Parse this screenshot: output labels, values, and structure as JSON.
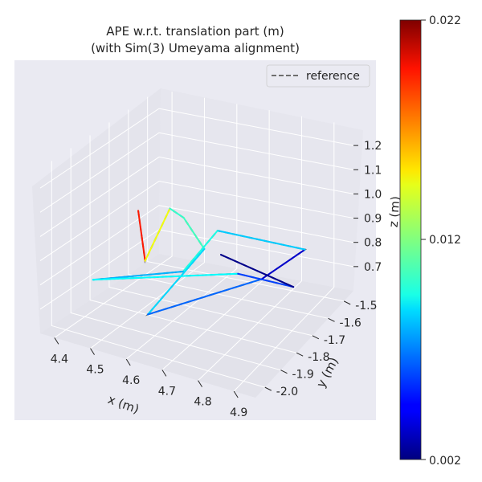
{
  "chart_data": {
    "type": "line",
    "projection": "3d",
    "title_lines": [
      "APE w.r.t. translation part (m)",
      "(with Sim(3) Umeyama alignment)"
    ],
    "xlabel": "x (m)",
    "ylabel": "y (m)",
    "zlabel": "z (m)",
    "x_ticks": [
      "4.4",
      "4.5",
      "4.6",
      "4.7",
      "4.8",
      "4.9"
    ],
    "y_ticks": [
      "-1.5",
      "-1.6",
      "-1.7",
      "-1.8",
      "-1.9",
      "-2.0"
    ],
    "z_ticks": [
      "0.7",
      "0.8",
      "0.9",
      "1.0",
      "1.1",
      "1.2"
    ],
    "x_tick_values": [
      4.4,
      4.5,
      4.6,
      4.7,
      4.8,
      4.9
    ],
    "y_tick_values": [
      -1.5,
      -1.6,
      -1.7,
      -1.8,
      -1.9,
      -2.0
    ],
    "z_tick_values": [
      0.7,
      0.8,
      0.9,
      1.0,
      1.1,
      1.2
    ],
    "xlim": [
      4.36,
      4.96
    ],
    "ylim": [
      -2.06,
      -1.44
    ],
    "zlim": [
      0.6,
      1.28
    ],
    "grid": true,
    "legend": {
      "placement": "top-right",
      "entries": [
        "reference"
      ],
      "style": "dashed",
      "color": "#6e6e6e"
    },
    "colorbar": {
      "ticks": [
        "0.022",
        "0.012",
        "0.002"
      ],
      "min": 0.002,
      "max": 0.022,
      "colormap": "jet"
    },
    "reference_path": [
      [
        4.5,
        -1.8,
        1.02
      ],
      [
        4.52,
        -1.8,
        0.82
      ],
      [
        4.55,
        -1.72,
        1.0
      ],
      [
        4.58,
        -1.7,
        0.96
      ],
      [
        4.62,
        -1.66,
        0.82
      ],
      [
        4.58,
        -1.9,
        0.68
      ],
      [
        4.82,
        -1.72,
        0.8
      ],
      [
        4.9,
        -1.62,
        0.88
      ],
      [
        4.68,
        -1.7,
        0.94
      ],
      [
        4.62,
        -1.78,
        0.8
      ],
      [
        4.45,
        -1.95,
        0.8
      ],
      [
        4.72,
        -1.66,
        0.75
      ],
      [
        4.88,
        -1.65,
        0.74
      ],
      [
        4.7,
        -1.72,
        0.86
      ]
    ],
    "estimate_path": [
      {
        "point": [
          4.5,
          -1.8,
          1.02
        ],
        "error": 0.0175
      },
      {
        "point": [
          4.52,
          -1.8,
          0.82
        ],
        "error": 0.0205
      },
      {
        "point": [
          4.55,
          -1.72,
          1.0
        ],
        "error": 0.008
      },
      {
        "point": [
          4.58,
          -1.7,
          0.96
        ],
        "error": 0.013
      },
      {
        "point": [
          4.62,
          -1.66,
          0.82
        ],
        "error": 0.0085
      },
      {
        "point": [
          4.58,
          -1.9,
          0.68
        ],
        "error": 0.009
      },
      {
        "point": [
          4.82,
          -1.72,
          0.8
        ],
        "error": 0.004
      },
      {
        "point": [
          4.9,
          -1.62,
          0.88
        ],
        "error": 0.003
      },
      {
        "point": [
          4.68,
          -1.7,
          0.94
        ],
        "error": 0.014
      },
      {
        "point": [
          4.62,
          -1.78,
          0.8
        ],
        "error": 0.006
      },
      {
        "point": [
          4.45,
          -1.95,
          0.8
        ],
        "error": 0.01
      },
      {
        "point": [
          4.72,
          -1.66,
          0.75
        ],
        "error": 0.009
      },
      {
        "point": [
          4.88,
          -1.65,
          0.74
        ],
        "error": 0.0025
      },
      {
        "point": [
          4.7,
          -1.72,
          0.86
        ],
        "error": 0.002
      }
    ]
  }
}
